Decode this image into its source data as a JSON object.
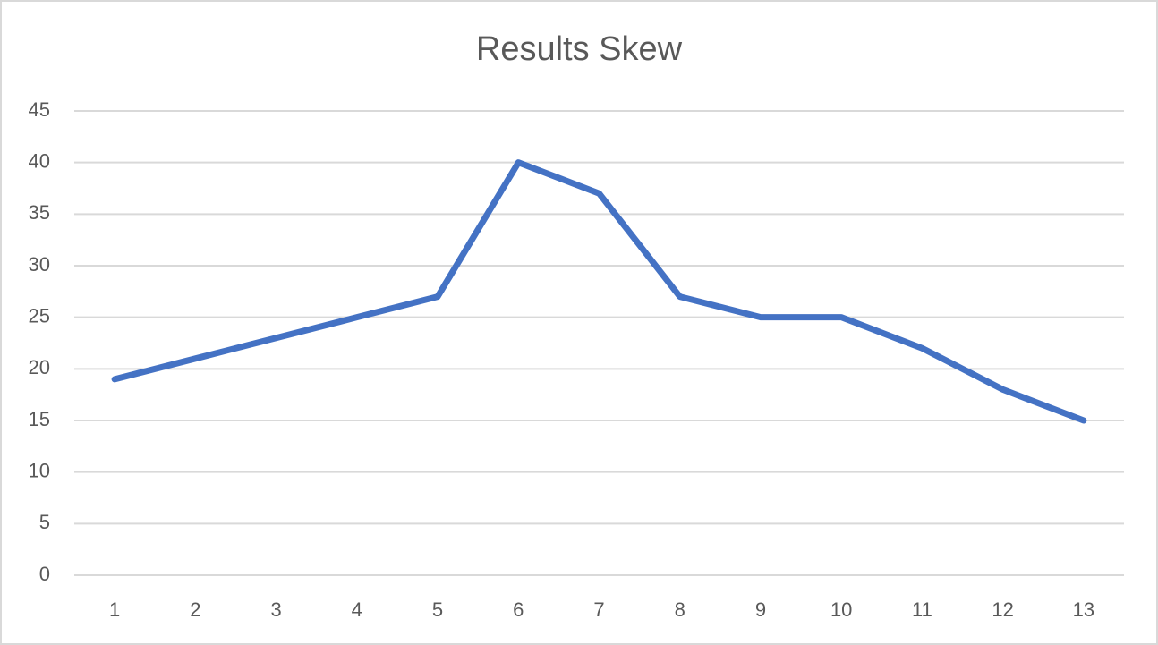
{
  "chart_data": {
    "type": "line",
    "title": "Results Skew",
    "categories": [
      "1",
      "2",
      "3",
      "4",
      "5",
      "6",
      "7",
      "8",
      "9",
      "10",
      "11",
      "12",
      "13"
    ],
    "values": [
      19,
      21,
      23,
      25,
      27,
      40,
      37,
      27,
      25,
      25,
      22,
      18,
      15
    ],
    "color": "#4472c4",
    "ylim": [
      0,
      45
    ],
    "yticks": [
      0,
      5,
      10,
      15,
      20,
      25,
      30,
      35,
      40,
      45
    ],
    "grid": true
  }
}
